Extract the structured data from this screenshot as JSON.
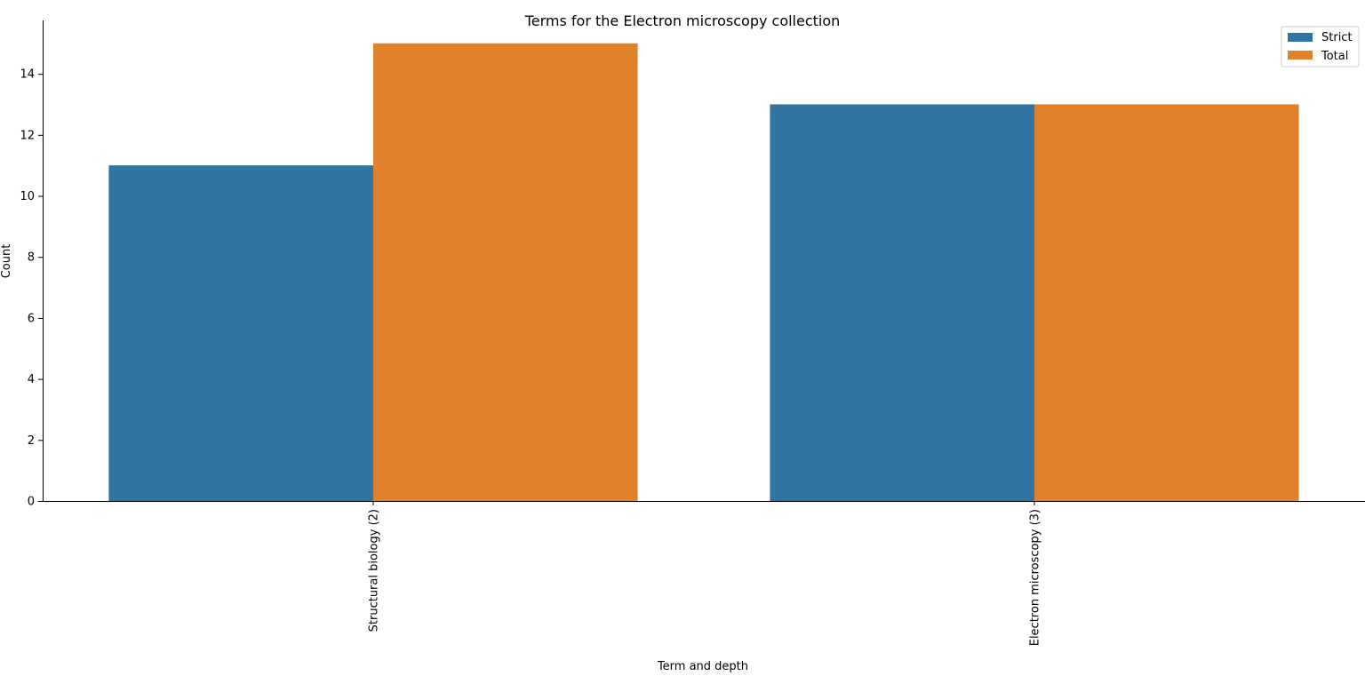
{
  "chart_data": {
    "type": "bar",
    "title": "Terms for the Electron microscopy collection",
    "xlabel": "Term and depth",
    "ylabel": "Count",
    "categories": [
      "Structural biology (2)",
      "Electron microscopy (3)"
    ],
    "series": [
      {
        "name": "Strict",
        "values": [
          11,
          13
        ],
        "color": "#3274a1"
      },
      {
        "name": "Total",
        "values": [
          15,
          13
        ],
        "color": "#e1812c"
      }
    ],
    "ylim": [
      0,
      15.75
    ],
    "yticks": [
      0,
      2,
      4,
      6,
      8,
      10,
      12,
      14
    ],
    "grid": false,
    "legend_position": "top-right"
  }
}
